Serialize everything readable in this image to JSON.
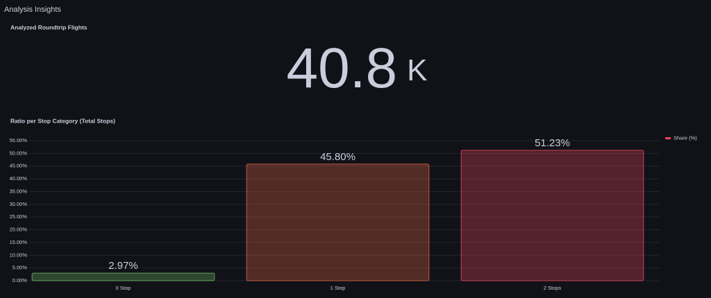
{
  "header": {
    "title": "Analysis Insights"
  },
  "stat_panel": {
    "title": "Analyzed Roundtrip Flights",
    "value": 40.8,
    "unit": "K",
    "color": "#73bf69"
  },
  "chart_data": {
    "type": "bar",
    "title": "Ratio per Stop Category (Total Stops)",
    "categories": [
      "0 Stop",
      "1 Stop",
      "2 Stops"
    ],
    "series": [
      {
        "name": "Share (%)",
        "color": "#f2495c",
        "colors": [
          "#73bf69",
          "#e8674a",
          "#f2495c"
        ],
        "values": [
          2.97,
          45.8,
          51.23
        ],
        "value_labels": [
          "2.97%",
          "45.80%",
          "51.23%"
        ]
      }
    ],
    "ylim": [
      0,
      55
    ],
    "yticks": [
      {
        "value": 0,
        "label": "0.00%"
      },
      {
        "value": 5,
        "label": "5.00%"
      },
      {
        "value": 10,
        "label": "10.00%"
      },
      {
        "value": 15,
        "label": "15.00%"
      },
      {
        "value": 20,
        "label": "20.00%"
      },
      {
        "value": 25,
        "label": "25.00%"
      },
      {
        "value": 30,
        "label": "30.00%"
      },
      {
        "value": 35,
        "label": "35.00%"
      },
      {
        "value": 40,
        "label": "40.00%"
      },
      {
        "value": 45,
        "label": "45.00%"
      },
      {
        "value": 50,
        "label": "50.00%"
      },
      {
        "value": 55,
        "label": "55.00%"
      }
    ],
    "grid": true,
    "legend": "top-right"
  }
}
